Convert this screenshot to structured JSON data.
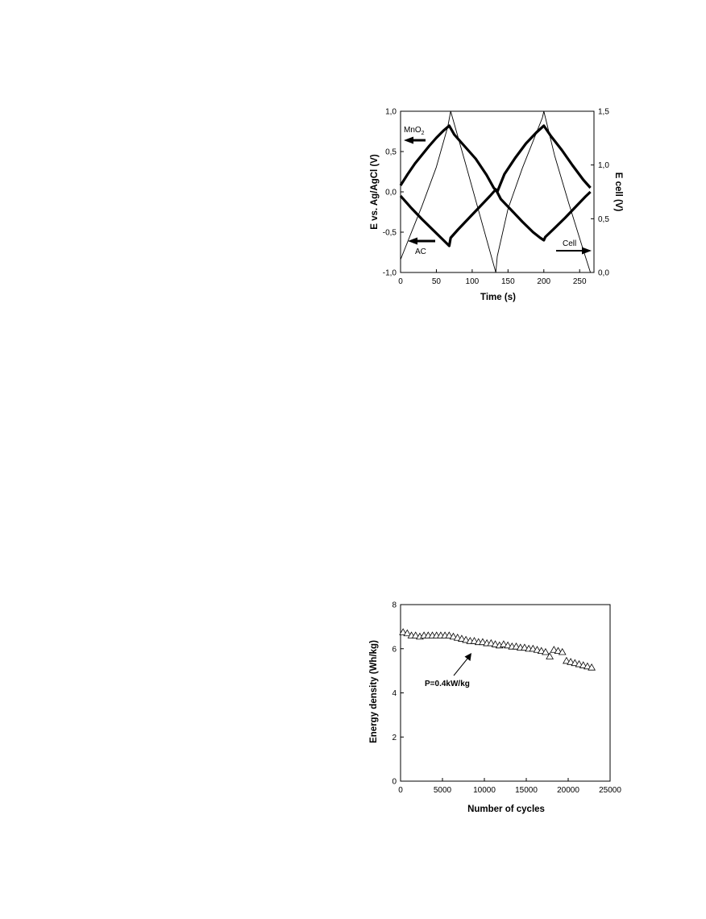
{
  "chart_data": [
    {
      "type": "line",
      "xlabel": "Time (s)",
      "ylabel": "E vs. Ag/AgCl (V)",
      "y2label": "E cell (V)",
      "xlim": [
        0,
        270
      ],
      "ylim": [
        -1.0,
        1.0
      ],
      "y2lim": [
        0.0,
        1.5
      ],
      "xticks": [
        "0",
        "50",
        "100",
        "150",
        "200",
        "250"
      ],
      "yticks": [
        "-1,0",
        "-0,5",
        "0,0",
        "0,5",
        "1,0"
      ],
      "y2ticks": [
        "0,0",
        "0,5",
        "1,0",
        "1,5"
      ],
      "grid": false,
      "annotations": {
        "mno2_main": "MnO",
        "mno2_sub": "2",
        "ac": "AC",
        "cell": "Cell"
      },
      "series": [
        {
          "name": "MnO2",
          "axis": "left",
          "style": "thick",
          "x": [
            0,
            10,
            20,
            30,
            40,
            50,
            60,
            68,
            75,
            90,
            105,
            120,
            130,
            135,
            145,
            160,
            175,
            190,
            200,
            210,
            225,
            240,
            255,
            265
          ],
          "y": [
            0.08,
            0.22,
            0.35,
            0.46,
            0.57,
            0.67,
            0.76,
            0.82,
            0.71,
            0.56,
            0.41,
            0.21,
            0.05,
            0.0,
            0.22,
            0.42,
            0.6,
            0.74,
            0.82,
            0.69,
            0.52,
            0.33,
            0.15,
            0.05
          ]
        },
        {
          "name": "AC",
          "axis": "left",
          "style": "thick",
          "x": [
            0,
            15,
            30,
            45,
            60,
            68,
            70,
            80,
            95,
            110,
            125,
            133,
            140,
            155,
            170,
            185,
            195,
            200,
            202,
            215,
            230,
            245,
            258,
            265
          ],
          "y": [
            -0.05,
            -0.2,
            -0.34,
            -0.47,
            -0.6,
            -0.67,
            -0.57,
            -0.47,
            -0.33,
            -0.19,
            -0.05,
            0.03,
            -0.09,
            -0.23,
            -0.37,
            -0.5,
            -0.57,
            -0.6,
            -0.56,
            -0.45,
            -0.32,
            -0.18,
            -0.06,
            0.0
          ]
        },
        {
          "name": "Cell",
          "axis": "right",
          "style": "thin",
          "x": [
            0,
            15,
            30,
            50,
            66,
            70,
            90,
            110,
            133,
            135,
            150,
            170,
            198,
            200,
            215,
            235,
            255,
            265
          ],
          "y": [
            0.12,
            0.37,
            0.62,
            0.98,
            1.36,
            1.5,
            1.03,
            0.55,
            0.0,
            0.15,
            0.59,
            0.97,
            1.44,
            1.5,
            1.09,
            0.64,
            0.21,
            0.0
          ]
        }
      ]
    },
    {
      "type": "scatter",
      "xlabel": "Number of cycles",
      "ylabel": "Energy density (Wh/kg)",
      "xlim": [
        0,
        25000
      ],
      "ylim": [
        0,
        8
      ],
      "xticks": [
        "0",
        "5000",
        "10000",
        "15000",
        "20000",
        "25000"
      ],
      "yticks": [
        "0",
        "2",
        "4",
        "6",
        "8"
      ],
      "grid": false,
      "marker": "open-triangle",
      "annotation": "P=0.4kW/kg",
      "x": [
        300,
        800,
        1300,
        1800,
        2300,
        2800,
        3300,
        3800,
        4300,
        4800,
        5300,
        5800,
        6300,
        6800,
        7300,
        7800,
        8300,
        8800,
        9300,
        9800,
        10300,
        10800,
        11300,
        11800,
        12300,
        12800,
        13300,
        13800,
        14300,
        14800,
        15300,
        15800,
        16300,
        16800,
        17300,
        17800,
        18300,
        18800,
        19300,
        19800,
        20300,
        20800,
        21300,
        21800,
        22300,
        22800
      ],
      "y": [
        6.75,
        6.7,
        6.6,
        6.6,
        6.55,
        6.6,
        6.6,
        6.6,
        6.6,
        6.6,
        6.6,
        6.6,
        6.55,
        6.5,
        6.45,
        6.4,
        6.35,
        6.35,
        6.3,
        6.3,
        6.25,
        6.25,
        6.2,
        6.15,
        6.2,
        6.15,
        6.1,
        6.1,
        6.05,
        6.05,
        6.0,
        6.0,
        5.95,
        5.9,
        5.85,
        5.65,
        5.95,
        5.9,
        5.85,
        5.45,
        5.4,
        5.35,
        5.3,
        5.25,
        5.2,
        5.15
      ]
    }
  ]
}
